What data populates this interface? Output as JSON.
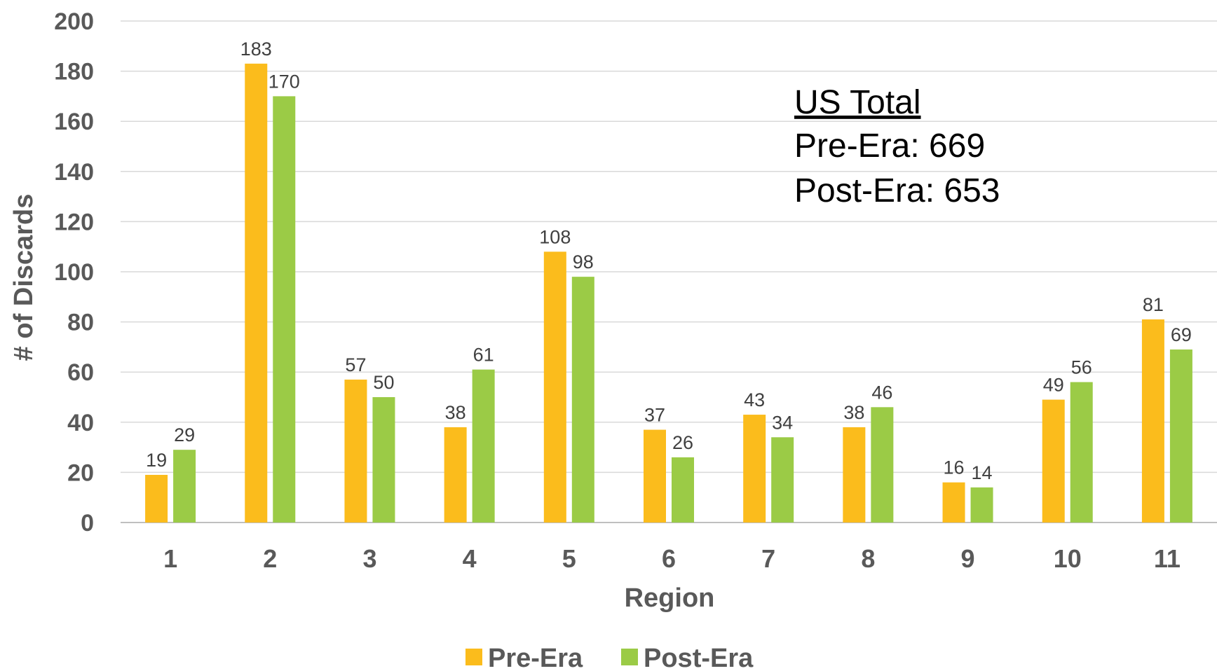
{
  "chart_data": {
    "type": "bar",
    "title": "",
    "xlabel": "Region",
    "ylabel": "# of Discards",
    "ylim": [
      0,
      200
    ],
    "yticks": [
      0,
      20,
      40,
      60,
      80,
      100,
      120,
      140,
      160,
      180,
      200
    ],
    "categories": [
      "1",
      "2",
      "3",
      "4",
      "5",
      "6",
      "7",
      "8",
      "9",
      "10",
      "11"
    ],
    "series": [
      {
        "name": "Pre-Era",
        "color": "#FBBC1C",
        "values": [
          19,
          183,
          57,
          38,
          108,
          37,
          43,
          38,
          16,
          49,
          81
        ]
      },
      {
        "name": "Post-Era",
        "color": "#9BCB46",
        "values": [
          29,
          170,
          50,
          61,
          98,
          26,
          34,
          46,
          14,
          56,
          69
        ]
      }
    ],
    "grid": true,
    "legend": "bottom",
    "annotation": {
      "title": "US Total",
      "lines": [
        "Pre-Era: 669",
        "Post-Era: 653"
      ]
    }
  }
}
